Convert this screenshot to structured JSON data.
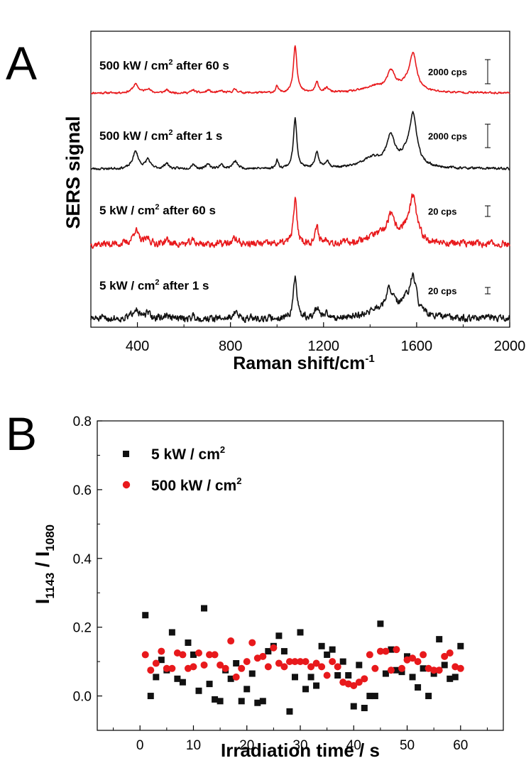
{
  "chart_data": [
    {
      "type": "line",
      "panel_label": "A",
      "xlabel": "Raman shift/cm",
      "xlabel_sup": "-1",
      "ylabel": "SERS signal",
      "xlim": [
        200,
        2000
      ],
      "xticks": [
        400,
        800,
        1200,
        1600,
        2000
      ],
      "colors": {
        "red": "#e8191c",
        "black": "#111111"
      },
      "series": [
        {
          "label_pre": "500 kW / cm",
          "label_sup": "2",
          "label_post": " after 60 s",
          "scale_label": "2000 cps",
          "color": "#e8191c",
          "peaks": [
            [
              392,
              15,
              12
            ],
            [
              445,
              11,
              6
            ],
            [
              525,
              9,
              4
            ],
            [
              640,
              9,
              4
            ],
            [
              705,
              9,
              4
            ],
            [
              760,
              8,
              3
            ],
            [
              820,
              11,
              5
            ],
            [
              1000,
              6,
              9
            ],
            [
              1078,
              9,
              67
            ],
            [
              1172,
              9,
              14
            ],
            [
              1215,
              10,
              6
            ],
            [
              1420,
              55,
              8
            ],
            [
              1490,
              20,
              26
            ],
            [
              1585,
              18,
              47
            ],
            [
              1560,
              45,
              10
            ]
          ],
          "noise": 1.2,
          "seed": 11
        },
        {
          "label_pre": "500 kW / cm",
          "label_sup": "2",
          "label_post": " after 1 s",
          "scale_label": "2000 cps",
          "color": "#111111",
          "peaks": [
            [
              392,
              15,
              24
            ],
            [
              445,
              11,
              13
            ],
            [
              525,
              10,
              8
            ],
            [
              640,
              9,
              7
            ],
            [
              705,
              9,
              7
            ],
            [
              760,
              9,
              6
            ],
            [
              820,
              13,
              10
            ],
            [
              1000,
              6,
              12
            ],
            [
              1078,
              9,
              70
            ],
            [
              1172,
              9,
              22
            ],
            [
              1215,
              10,
              10
            ],
            [
              1410,
              55,
              14
            ],
            [
              1488,
              20,
              40
            ],
            [
              1585,
              18,
              65
            ],
            [
              1560,
              45,
              16
            ]
          ],
          "noise": 1.4,
          "seed": 23
        },
        {
          "label_pre": "5 kW / cm",
          "label_sup": "2",
          "label_post": " after 60 s",
          "scale_label": "20 cps",
          "color": "#e8191c",
          "peaks": [
            [
              392,
              14,
              20
            ],
            [
              445,
              11,
              8
            ],
            [
              525,
              10,
              6
            ],
            [
              640,
              9,
              5
            ],
            [
              820,
              12,
              8
            ],
            [
              1078,
              9,
              62
            ],
            [
              1172,
              9,
              22
            ],
            [
              1215,
              10,
              6
            ],
            [
              1420,
              55,
              10
            ],
            [
              1488,
              20,
              32
            ],
            [
              1585,
              18,
              55
            ],
            [
              1555,
              40,
              16
            ]
          ],
          "noise": 4.2,
          "seed": 37
        },
        {
          "label_pre": "5 kW / cm",
          "label_sup": "2",
          "label_post": "  after 1 s",
          "scale_label": "20 cps",
          "color": "#111111",
          "peaks": [
            [
              392,
              14,
              16
            ],
            [
              445,
              11,
              7
            ],
            [
              525,
              10,
              5
            ],
            [
              640,
              9,
              4
            ],
            [
              820,
              12,
              9
            ],
            [
              1078,
              9,
              58
            ],
            [
              1172,
              9,
              16
            ],
            [
              1215,
              10,
              5
            ],
            [
              1420,
              55,
              9
            ],
            [
              1484,
              20,
              34
            ],
            [
              1585,
              18,
              46
            ],
            [
              1555,
              40,
              18
            ]
          ],
          "noise": 4.2,
          "seed": 51
        }
      ]
    },
    {
      "type": "scatter",
      "panel_label": "B",
      "xlabel": "Irradiation time / s",
      "ylabel_main": "I",
      "ylabel_sub1": "1143",
      "ylabel_mid": " / I",
      "ylabel_sub2": "1080",
      "xlim": [
        -8,
        68
      ],
      "ylim": [
        -0.1,
        0.8
      ],
      "xticks": [
        0,
        10,
        20,
        30,
        40,
        50,
        60
      ],
      "yticks": [
        "0.0",
        "0.2",
        "0.4",
        "0.6",
        "0.8"
      ],
      "series": [
        {
          "name_pre": "5 kW / cm",
          "name_sup": "2",
          "marker": "square",
          "color": "#111111",
          "x": [
            1,
            2,
            3,
            4,
            5,
            6,
            7,
            8,
            9,
            10,
            11,
            12,
            13,
            14,
            15,
            16,
            17,
            18,
            19,
            20,
            21,
            22,
            23,
            24,
            25,
            26,
            27,
            28,
            29,
            30,
            31,
            32,
            33,
            34,
            35,
            36,
            37,
            38,
            39,
            40,
            41,
            42,
            43,
            44,
            45,
            46,
            47,
            48,
            49,
            50,
            51,
            52,
            53,
            54,
            55,
            56,
            57,
            58,
            59,
            60
          ],
          "y": [
            0.235,
            0.0,
            0.055,
            0.105,
            0.075,
            0.185,
            0.05,
            0.04,
            0.155,
            0.12,
            0.015,
            0.255,
            0.035,
            -0.01,
            -0.015,
            0.075,
            0.05,
            0.095,
            -0.015,
            0.02,
            0.065,
            -0.02,
            -0.015,
            0.13,
            0.145,
            0.175,
            0.13,
            -0.045,
            0.055,
            0.185,
            0.02,
            0.055,
            0.03,
            0.145,
            0.12,
            0.135,
            0.06,
            0.1,
            0.06,
            -0.03,
            0.09,
            -0.035,
            0.0,
            0.0,
            0.21,
            0.065,
            0.135,
            0.075,
            0.07,
            0.115,
            0.055,
            0.025,
            0.08,
            0.0,
            0.065,
            0.165,
            0.09,
            0.05,
            0.055,
            0.145
          ]
        },
        {
          "name_pre": "500 kW / cm",
          "name_sup": "2",
          "marker": "circle",
          "color": "#e8191c",
          "x": [
            1,
            2,
            3,
            4,
            5,
            6,
            7,
            8,
            9,
            10,
            11,
            12,
            13,
            14,
            15,
            16,
            17,
            18,
            19,
            20,
            21,
            22,
            23,
            24,
            25,
            26,
            27,
            28,
            29,
            30,
            31,
            32,
            33,
            34,
            35,
            36,
            37,
            38,
            39,
            40,
            41,
            42,
            43,
            44,
            45,
            46,
            47,
            48,
            49,
            50,
            51,
            52,
            53,
            54,
            55,
            56,
            57,
            58,
            59,
            60
          ],
          "y": [
            0.12,
            0.075,
            0.095,
            0.13,
            0.08,
            0.08,
            0.125,
            0.12,
            0.08,
            0.085,
            0.125,
            0.09,
            0.12,
            0.12,
            0.09,
            0.08,
            0.16,
            0.055,
            0.08,
            0.1,
            0.155,
            0.11,
            0.115,
            0.085,
            0.14,
            0.095,
            0.085,
            0.1,
            0.1,
            0.1,
            0.1,
            0.085,
            0.095,
            0.085,
            0.06,
            0.1,
            0.085,
            0.04,
            0.035,
            0.03,
            0.04,
            0.05,
            0.12,
            0.08,
            0.13,
            0.13,
            0.075,
            0.135,
            0.08,
            0.105,
            0.11,
            0.1,
            0.12,
            0.08,
            0.075,
            0.075,
            0.115,
            0.125,
            0.085,
            0.08
          ]
        }
      ]
    }
  ]
}
